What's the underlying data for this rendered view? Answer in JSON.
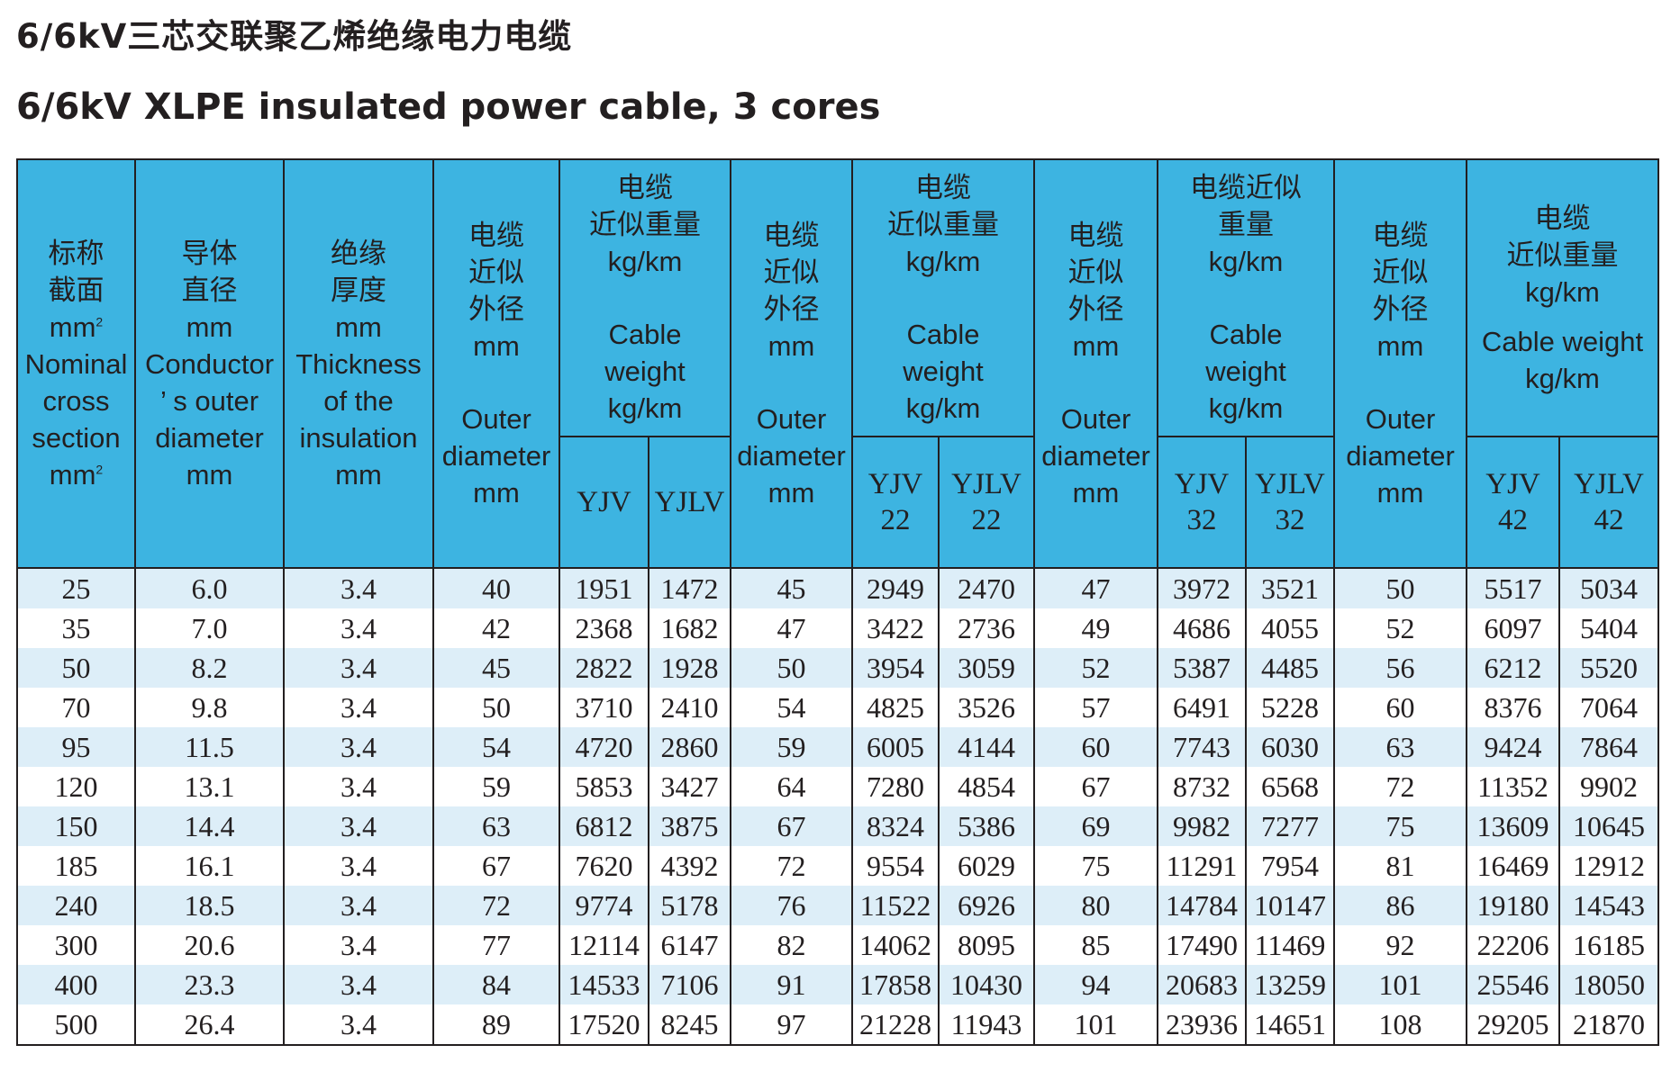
{
  "title_cn": "6/6kV三芯交联聚乙烯绝缘电力电缆",
  "title_en": "6/6kV XLPE insulated power cable, 3 cores",
  "headers": {
    "nominal": {
      "cn1": "标称",
      "cn2": "截面",
      "unit": "mm",
      "sup": "2",
      "en1": "Nominal",
      "en2": "cross",
      "en3": "section",
      "en_unit": "mm",
      "en_sup": "2"
    },
    "conductor": {
      "cn1": "导体",
      "cn2": "直径",
      "unit": "mm",
      "en1": "Conductor",
      "en2": "’ s outer",
      "en3": "diameter",
      "en_unit": "mm"
    },
    "insulation": {
      "cn1": "绝缘",
      "cn2": "厚度",
      "unit": "mm",
      "en1": "Thickness",
      "en2": "of the",
      "en3": "insulation",
      "en_unit": "mm"
    },
    "od1": {
      "cn1": "电缆",
      "cn2": "近似",
      "cn3": "外径",
      "unit": "mm",
      "en1": "Outer",
      "en2": "diameter",
      "en_unit": "mm"
    },
    "wt1": {
      "cn1": "电缆",
      "cn2": "近似重量",
      "unit": "kg/km",
      "en1": "Cable",
      "en2": "weight",
      "en_unit": "kg/km",
      "sub_a": "YJV",
      "sub_b": "YJLV"
    },
    "od2": {
      "cn1": "电缆",
      "cn2": "近似",
      "cn3": "外径",
      "unit": "mm",
      "en1": "Outer",
      "en2": "diameter",
      "en_unit": "mm"
    },
    "wt2": {
      "cn1": "电缆",
      "cn2": "近似重量",
      "unit": "kg/km",
      "en1": "Cable",
      "en2": "weight",
      "en_unit": "kg/km",
      "sub_a1": "YJV",
      "sub_a2": "22",
      "sub_b1": "YJLV",
      "sub_b2": "22"
    },
    "od3": {
      "cn1": "电缆",
      "cn2": "近似",
      "cn3": "外径",
      "unit": "mm",
      "en1": "Outer",
      "en2": "diameter",
      "en_unit": "mm"
    },
    "wt3": {
      "cn1": "电缆近似",
      "cn2": "重量",
      "unit": "kg/km",
      "en1": "Cable",
      "en2": "weight",
      "en_unit": "kg/km",
      "sub_a1": "YJV",
      "sub_a2": "32",
      "sub_b1": "YJLV",
      "sub_b2": "32"
    },
    "od4": {
      "cn1": "电缆",
      "cn2": "近似",
      "cn3": "外径",
      "unit": "mm",
      "en1": "Outer",
      "en2": "diameter",
      "en_unit": "mm"
    },
    "wt4": {
      "cn1": "电缆",
      "cn2": "近似重量",
      "unit": "kg/km",
      "en1": "Cable weight",
      "en_unit": "kg/km",
      "sub_a1": "YJV",
      "sub_a2": "42",
      "sub_b1": "YJLV",
      "sub_b2": "42"
    }
  },
  "rows": [
    [
      "25",
      "6.0",
      "3.4",
      "40",
      "1951",
      "1472",
      "45",
      "2949",
      "2470",
      "47",
      "3972",
      "3521",
      "50",
      "5517",
      "5034"
    ],
    [
      "35",
      "7.0",
      "3.4",
      "42",
      "2368",
      "1682",
      "47",
      "3422",
      "2736",
      "49",
      "4686",
      "4055",
      "52",
      "6097",
      "5404"
    ],
    [
      "50",
      "8.2",
      "3.4",
      "45",
      "2822",
      "1928",
      "50",
      "3954",
      "3059",
      "52",
      "5387",
      "4485",
      "56",
      "6212",
      "5520"
    ],
    [
      "70",
      "9.8",
      "3.4",
      "50",
      "3710",
      "2410",
      "54",
      "4825",
      "3526",
      "57",
      "6491",
      "5228",
      "60",
      "8376",
      "7064"
    ],
    [
      "95",
      "11.5",
      "3.4",
      "54",
      "4720",
      "2860",
      "59",
      "6005",
      "4144",
      "60",
      "7743",
      "6030",
      "63",
      "9424",
      "7864"
    ],
    [
      "120",
      "13.1",
      "3.4",
      "59",
      "5853",
      "3427",
      "64",
      "7280",
      "4854",
      "67",
      "8732",
      "6568",
      "72",
      "11352",
      "9902"
    ],
    [
      "150",
      "14.4",
      "3.4",
      "63",
      "6812",
      "3875",
      "67",
      "8324",
      "5386",
      "69",
      "9982",
      "7277",
      "75",
      "13609",
      "10645"
    ],
    [
      "185",
      "16.1",
      "3.4",
      "67",
      "7620",
      "4392",
      "72",
      "9554",
      "6029",
      "75",
      "11291",
      "7954",
      "81",
      "16469",
      "12912"
    ],
    [
      "240",
      "18.5",
      "3.4",
      "72",
      "9774",
      "5178",
      "76",
      "11522",
      "6926",
      "80",
      "14784",
      "10147",
      "86",
      "19180",
      "14543"
    ],
    [
      "300",
      "20.6",
      "3.4",
      "77",
      "12114",
      "6147",
      "82",
      "14062",
      "8095",
      "85",
      "17490",
      "11469",
      "92",
      "22206",
      "16185"
    ],
    [
      "400",
      "23.3",
      "3.4",
      "84",
      "14533",
      "7106",
      "91",
      "17858",
      "10430",
      "94",
      "20683",
      "13259",
      "101",
      "25546",
      "18050"
    ],
    [
      "500",
      "26.4",
      "3.4",
      "89",
      "17520",
      "8245",
      "97",
      "21228",
      "11943",
      "101",
      "23936",
      "14651",
      "108",
      "29205",
      "21870"
    ]
  ]
}
